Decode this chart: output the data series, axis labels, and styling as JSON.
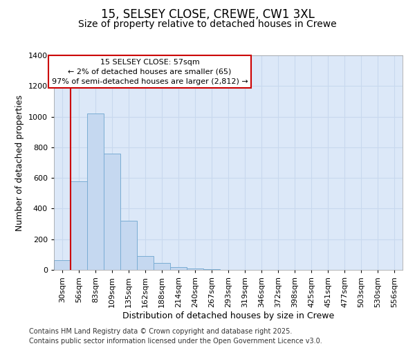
{
  "title1": "15, SELSEY CLOSE, CREWE, CW1 3XL",
  "title2": "Size of property relative to detached houses in Crewe",
  "xlabel": "Distribution of detached houses by size in Crewe",
  "ylabel": "Number of detached properties",
  "categories": [
    "30sqm",
    "56sqm",
    "83sqm",
    "109sqm",
    "135sqm",
    "162sqm",
    "188sqm",
    "214sqm",
    "240sqm",
    "267sqm",
    "293sqm",
    "319sqm",
    "346sqm",
    "372sqm",
    "398sqm",
    "425sqm",
    "451sqm",
    "477sqm",
    "503sqm",
    "530sqm",
    "556sqm"
  ],
  "values": [
    65,
    580,
    1020,
    760,
    320,
    90,
    45,
    20,
    10,
    5,
    2,
    0,
    2,
    0,
    0,
    0,
    0,
    0,
    0,
    0,
    0
  ],
  "bar_color": "#c5d8f0",
  "bar_edge_color": "#7aadd4",
  "grid_color": "#c8d8ee",
  "background_color": "#dce8f8",
  "annotation_text": "15 SELSEY CLOSE: 57sqm\n← 2% of detached houses are smaller (65)\n97% of semi-detached houses are larger (2,812) →",
  "annotation_box_color": "#ffffff",
  "annotation_box_edge_color": "#cc0000",
  "vline_color": "#cc0000",
  "vline_x": 1.5,
  "ylim": [
    0,
    1400
  ],
  "yticks": [
    0,
    200,
    400,
    600,
    800,
    1000,
    1200,
    1400
  ],
  "footer": "Contains HM Land Registry data © Crown copyright and database right 2025.\nContains public sector information licensed under the Open Government Licence v3.0.",
  "title_fontsize": 12,
  "subtitle_fontsize": 10,
  "axis_label_fontsize": 9,
  "tick_fontsize": 8,
  "annotation_fontsize": 8,
  "footer_fontsize": 7
}
